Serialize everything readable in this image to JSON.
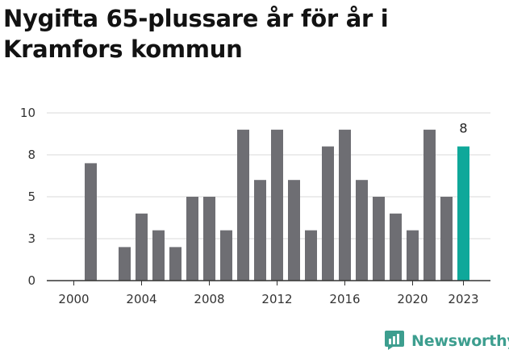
{
  "title": "Nygifta 65-plussare år för år i Kramfors kommun",
  "brand": {
    "name": "Newsworthy"
  },
  "colors": {
    "bar": "#6e6e73",
    "highlight": "#0fa89a",
    "grid": "#d9d9d9",
    "axis": "#333333",
    "brand": "#3d9e8f"
  },
  "chart_data": {
    "type": "bar",
    "title": "Nygifta 65-plussare år för år i Kramfors kommun",
    "xlabel": "",
    "ylabel": "",
    "categories": [
      "2000",
      "2001",
      "2002",
      "2003",
      "2004",
      "2005",
      "2006",
      "2007",
      "2008",
      "2009",
      "2010",
      "2011",
      "2012",
      "2013",
      "2014",
      "2015",
      "2016",
      "2017",
      "2018",
      "2019",
      "2020",
      "2021",
      "2022",
      "2023"
    ],
    "values": [
      0,
      7,
      0,
      2,
      4,
      3,
      2,
      5,
      5,
      3,
      9,
      6,
      9,
      6,
      3,
      8,
      9,
      6,
      5,
      4,
      3,
      9,
      5,
      8
    ],
    "ylim": [
      0,
      10
    ],
    "yticks": [
      0,
      2.5,
      5,
      7.5,
      10
    ],
    "ytick_labels": [
      "0",
      "3",
      "5",
      "8",
      "10"
    ],
    "xtick_labels": [
      "2000",
      "2004",
      "2008",
      "2012",
      "2016",
      "2020",
      "2023"
    ],
    "highlight": {
      "category": "2023",
      "label": "8"
    },
    "grid": true,
    "legend": "none"
  }
}
